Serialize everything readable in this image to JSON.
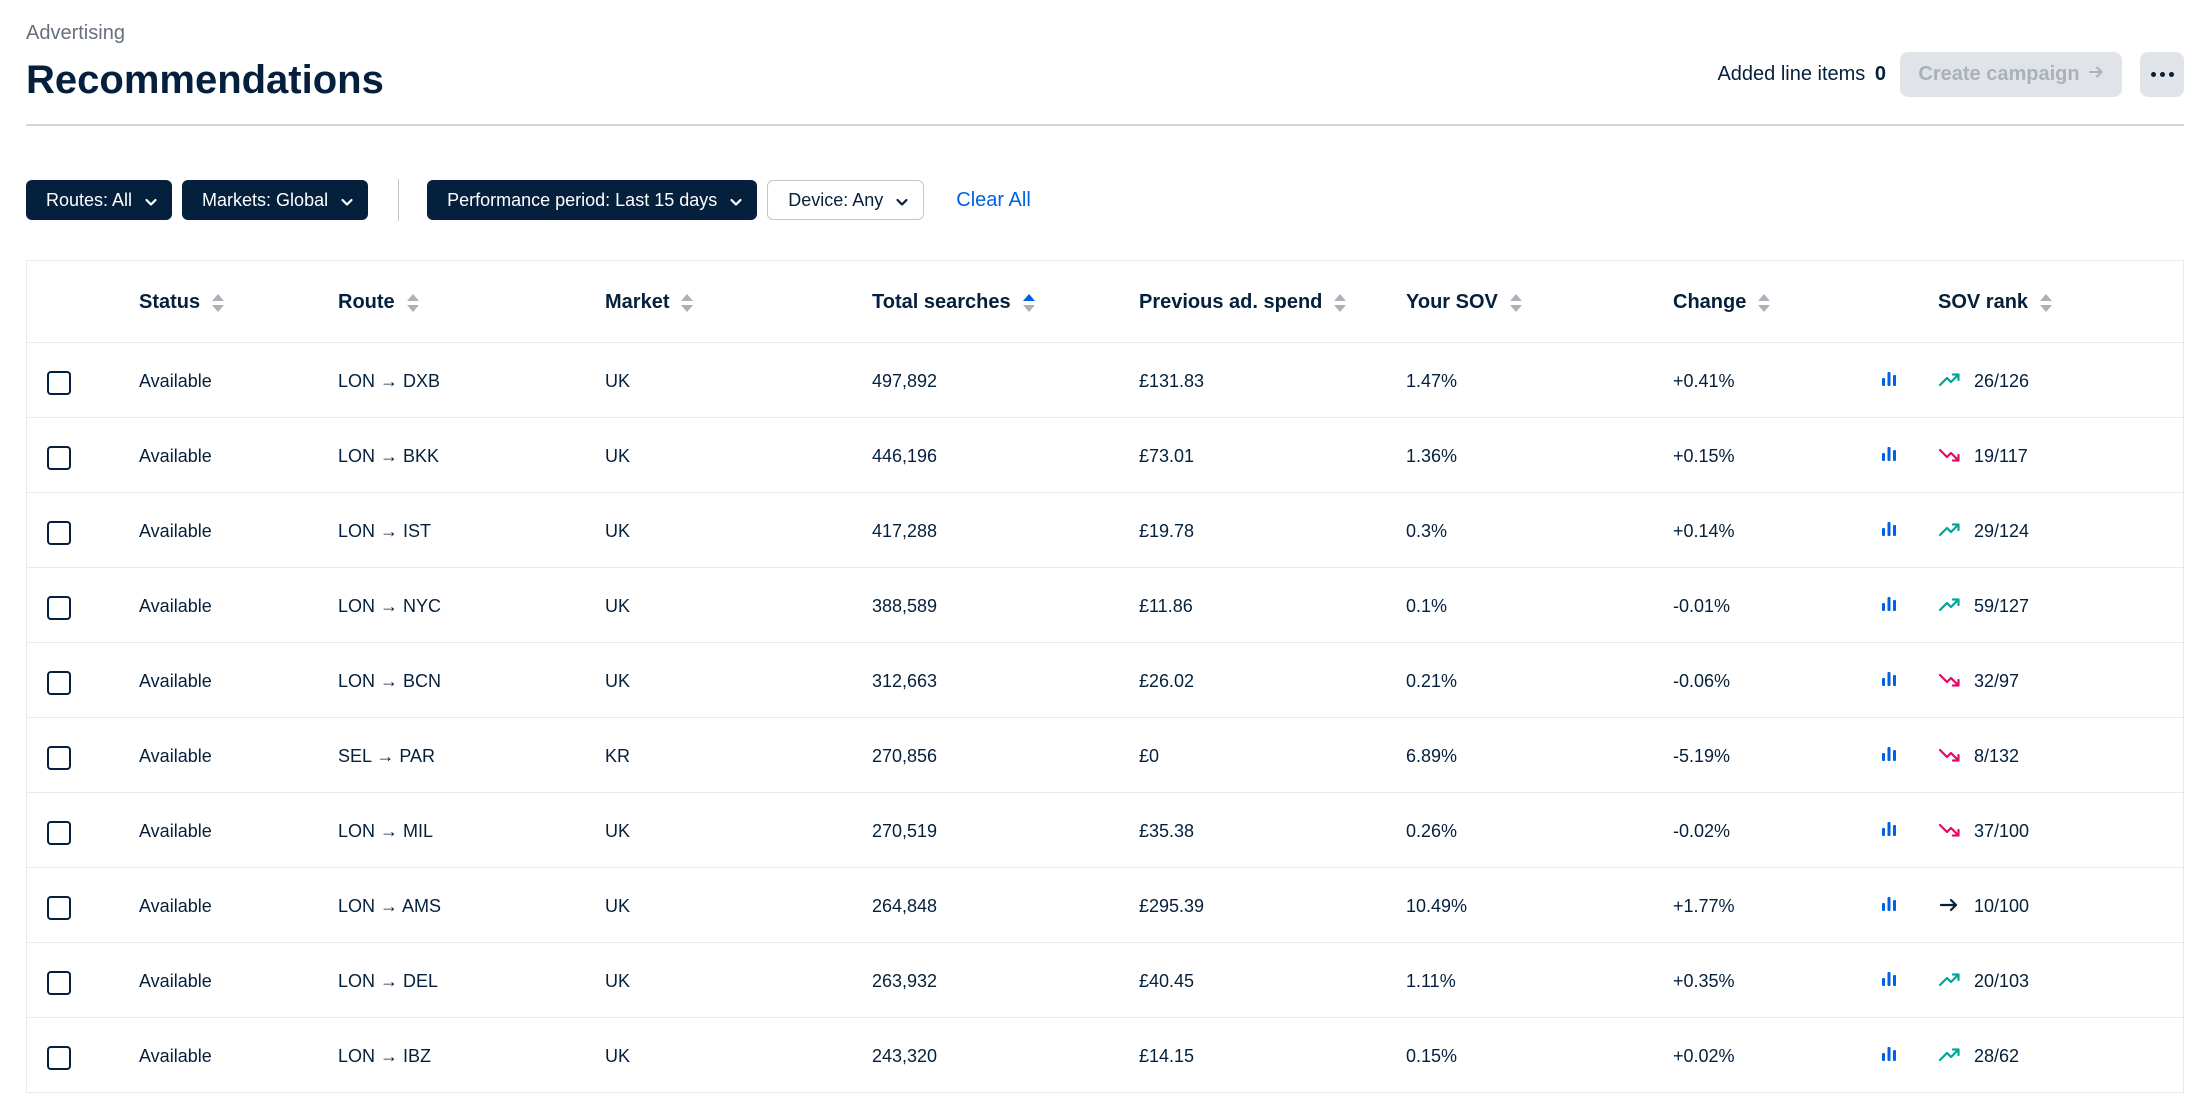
{
  "breadcrumb": "Advertising",
  "title": "Recommendations",
  "added_line_items": {
    "label": "Added line items",
    "count": "0"
  },
  "create_campaign": "Create campaign",
  "filters": {
    "routes": "Routes: All",
    "markets": "Markets: Global",
    "period": "Performance period: Last 15 days",
    "device": "Device: Any",
    "clear_all": "Clear All"
  },
  "columns": {
    "status": "Status",
    "route": "Route",
    "market": "Market",
    "total_searches": "Total searches",
    "previous_spend": "Previous ad. spend",
    "your_sov": "Your SOV",
    "change": "Change",
    "sov_rank": "SOV rank"
  },
  "colors": {
    "dark_navy": "#05203c",
    "link_blue": "#0062e3",
    "trend_up": "#00a698",
    "trend_down": "#e70866",
    "trend_flat": "#05203c"
  },
  "rows": [
    {
      "status": "Available",
      "route": "LON → DXB",
      "market": "UK",
      "searches": "497,892",
      "spend": "£131.83",
      "sov": "1.47%",
      "change": "+0.41%",
      "trend": "up",
      "rank": "26/126"
    },
    {
      "status": "Available",
      "route": "LON → BKK",
      "market": "UK",
      "searches": "446,196",
      "spend": "£73.01",
      "sov": "1.36%",
      "change": "+0.15%",
      "trend": "down",
      "rank": "19/117"
    },
    {
      "status": "Available",
      "route": "LON → IST",
      "market": "UK",
      "searches": "417,288",
      "spend": "£19.78",
      "sov": "0.3%",
      "change": "+0.14%",
      "trend": "up",
      "rank": "29/124"
    },
    {
      "status": "Available",
      "route": "LON → NYC",
      "market": "UK",
      "searches": "388,589",
      "spend": "£11.86",
      "sov": "0.1%",
      "change": "-0.01%",
      "trend": "up",
      "rank": "59/127"
    },
    {
      "status": "Available",
      "route": "LON → BCN",
      "market": "UK",
      "searches": "312,663",
      "spend": "£26.02",
      "sov": "0.21%",
      "change": "-0.06%",
      "trend": "down",
      "rank": "32/97"
    },
    {
      "status": "Available",
      "route": "SEL → PAR",
      "market": "KR",
      "searches": "270,856",
      "spend": "£0",
      "sov": "6.89%",
      "change": "-5.19%",
      "trend": "down",
      "rank": "8/132"
    },
    {
      "status": "Available",
      "route": "LON → MIL",
      "market": "UK",
      "searches": "270,519",
      "spend": "£35.38",
      "sov": "0.26%",
      "change": "-0.02%",
      "trend": "down",
      "rank": "37/100"
    },
    {
      "status": "Available",
      "route": "LON → AMS",
      "market": "UK",
      "searches": "264,848",
      "spend": "£295.39",
      "sov": "10.49%",
      "change": "+1.77%",
      "trend": "flat",
      "rank": "10/100"
    },
    {
      "status": "Available",
      "route": "LON → DEL",
      "market": "UK",
      "searches": "263,932",
      "spend": "£40.45",
      "sov": "1.11%",
      "change": "+0.35%",
      "trend": "up",
      "rank": "20/103"
    },
    {
      "status": "Available",
      "route": "LON → IBZ",
      "market": "UK",
      "searches": "243,320",
      "spend": "£14.15",
      "sov": "0.15%",
      "change": "+0.02%",
      "trend": "up",
      "rank": "28/62"
    }
  ]
}
